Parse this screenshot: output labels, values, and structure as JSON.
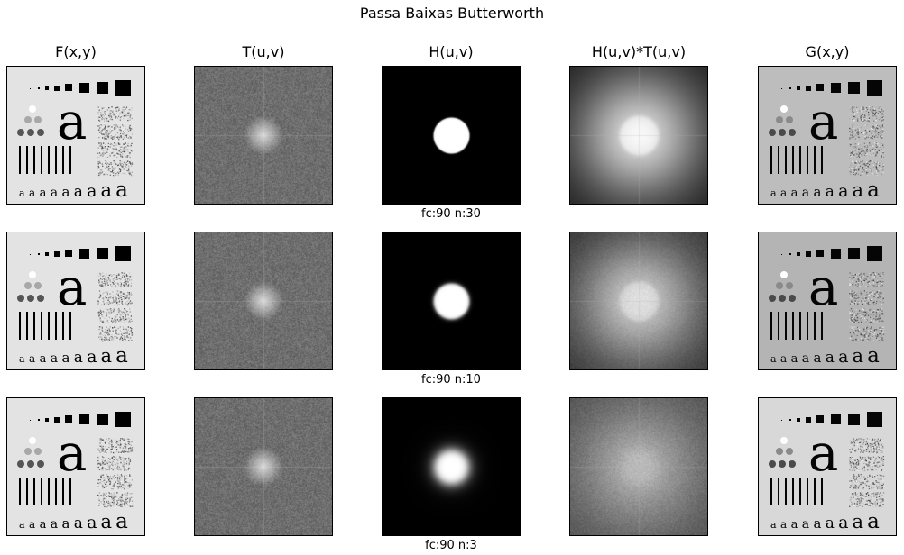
{
  "figure": {
    "title": "Passa Baixas Butterworth"
  },
  "columns": [
    {
      "id": "f",
      "title": "F(x,y)"
    },
    {
      "id": "t",
      "title": "T(u,v)"
    },
    {
      "id": "h",
      "title": "H(u,v)"
    },
    {
      "id": "ht",
      "title": "H(u,v)*T(u,v)"
    },
    {
      "id": "g",
      "title": "G(x,y)"
    }
  ],
  "rows": [
    {
      "caption": "fc:90 n:30",
      "order": 30,
      "cutoff": 90
    },
    {
      "caption": "fc:90 n:10",
      "order": 10,
      "cutoff": 90
    },
    {
      "caption": "fc:90 n:3",
      "order": 3,
      "cutoff": 90
    }
  ],
  "test_pattern": {
    "glyph": "a"
  },
  "colors": {
    "background": "#ffffff",
    "frame": "#000000",
    "spectrum": "#6e6e6e",
    "filter_pass": "#ffffff",
    "filter_stop": "#000000"
  }
}
